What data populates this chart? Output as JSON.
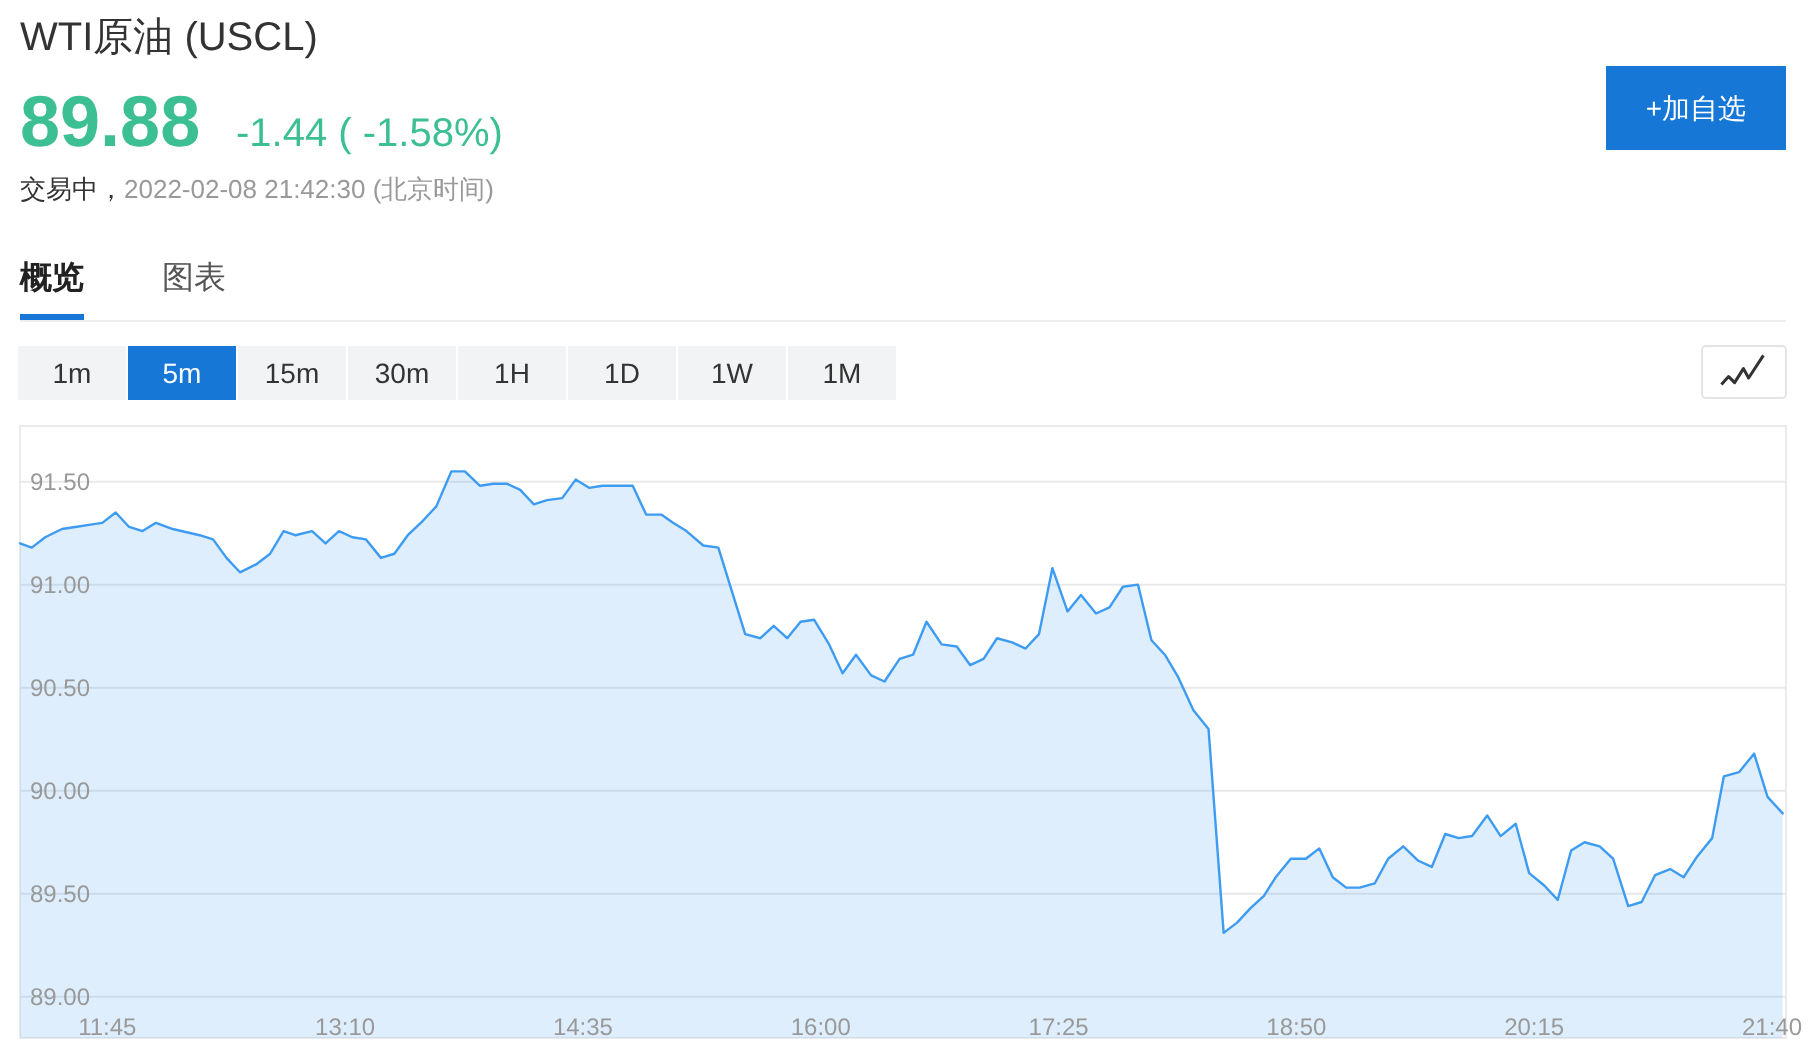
{
  "chart_data": {
    "type": "area",
    "title": "WTI原油 (USCL)",
    "subtitle": "2022-02-08 21:42:30 (北京时间)",
    "annotations": [
      "89.88",
      "-1.44 ( -1.58%)",
      "交易中，",
      "概览",
      "图表",
      "1m",
      "5m",
      "15m",
      "30m",
      "1H",
      "1D",
      "1W",
      "1M",
      "+加自选"
    ],
    "x": [
      11.23,
      11.3,
      11.38,
      11.48,
      11.56,
      11.64,
      11.72,
      11.8,
      11.88,
      11.96,
      12.04,
      12.14,
      12.3,
      12.38,
      12.46,
      12.54,
      12.64,
      12.72,
      12.8,
      12.87,
      12.97,
      13.05,
      13.13,
      13.21,
      13.29,
      13.38,
      13.46,
      13.54,
      13.63,
      13.71,
      13.8,
      13.88,
      13.97,
      14.05,
      14.13,
      14.21,
      14.29,
      14.37,
      14.46,
      14.54,
      14.62,
      14.7,
      14.88,
      14.96,
      15.05,
      15.12,
      15.2,
      15.3,
      15.39,
      15.47,
      15.55,
      15.64,
      15.72,
      15.8,
      15.88,
      15.96,
      16.05,
      16.13,
      16.21,
      16.3,
      16.38,
      16.47,
      16.55,
      16.63,
      16.72,
      16.81,
      16.89,
      16.97,
      17.05,
      17.14,
      17.22,
      17.3,
      17.38,
      17.47,
      17.55,
      17.64,
      17.72,
      17.8,
      17.89,
      17.97,
      18.05,
      18.13,
      18.22,
      18.31,
      18.4,
      18.48,
      18.56,
      18.64,
      18.71,
      18.8,
      18.89,
      18.97,
      19.05,
      19.13,
      19.21,
      19.3,
      19.38,
      19.47,
      19.56,
      19.64,
      19.72,
      19.8,
      19.88,
      19.97,
      20.05,
      20.14,
      20.22,
      20.31,
      20.39,
      20.47,
      20.55,
      20.64,
      20.72,
      20.81,
      20.89,
      20.97,
      21.06,
      21.14,
      21.22,
      21.31,
      21.38,
      21.47,
      21.56,
      21.64,
      21.73
    ],
    "values": [
      91.2,
      91.18,
      91.23,
      91.27,
      91.28,
      91.29,
      91.3,
      91.35,
      91.28,
      91.26,
      91.3,
      91.27,
      91.24,
      91.22,
      91.13,
      91.06,
      91.1,
      91.15,
      91.26,
      91.24,
      91.26,
      91.2,
      91.26,
      91.23,
      91.22,
      91.13,
      91.15,
      91.24,
      91.31,
      91.38,
      91.55,
      91.55,
      91.48,
      91.49,
      91.49,
      91.46,
      91.39,
      91.41,
      91.42,
      91.51,
      91.47,
      91.48,
      91.48,
      91.34,
      91.34,
      91.3,
      91.26,
      91.19,
      91.18,
      90.97,
      90.76,
      90.74,
      90.8,
      90.74,
      90.82,
      90.83,
      90.71,
      90.57,
      90.66,
      90.56,
      90.53,
      90.64,
      90.66,
      90.82,
      90.71,
      90.7,
      90.61,
      90.64,
      90.74,
      90.72,
      90.69,
      90.76,
      91.08,
      90.87,
      90.95,
      90.86,
      90.89,
      90.99,
      91.0,
      90.73,
      90.66,
      90.55,
      90.39,
      90.3,
      89.31,
      89.36,
      89.43,
      89.49,
      89.58,
      89.67,
      89.67,
      89.72,
      89.58,
      89.53,
      89.53,
      89.55,
      89.67,
      89.73,
      89.66,
      89.63,
      89.79,
      89.77,
      89.78,
      89.88,
      89.78,
      89.84,
      89.6,
      89.54,
      89.47,
      89.71,
      89.75,
      89.73,
      89.67,
      89.44,
      89.46,
      89.59,
      89.62,
      89.58,
      89.68,
      89.77,
      90.07,
      90.09,
      90.18,
      89.97,
      89.89
    ],
    "color": "#3d9cf2",
    "xlim": [
      11.23,
      21.75
    ],
    "ylim": [
      88.8,
      91.77
    ],
    "xticks": [
      {
        "value": 11.75,
        "label": "11:45"
      },
      {
        "value": 13.1667,
        "label": "13:10"
      },
      {
        "value": 14.5833,
        "label": "14:35"
      },
      {
        "value": 16,
        "label": "16:00"
      },
      {
        "value": 17.4167,
        "label": "17:25"
      },
      {
        "value": 18.8333,
        "label": "18:50"
      },
      {
        "value": 20.25,
        "label": "20:15"
      },
      {
        "value": 21.6667,
        "label": "21:40"
      }
    ],
    "yticks": [
      {
        "value": 89,
        "label": "89.00"
      },
      {
        "value": 89.5,
        "label": "89.50"
      },
      {
        "value": 90,
        "label": "90.00"
      },
      {
        "value": 90.5,
        "label": "90.50"
      },
      {
        "value": 91,
        "label": "91.00"
      },
      {
        "value": 91.5,
        "label": "91.50"
      }
    ],
    "grid": "y"
  }
}
